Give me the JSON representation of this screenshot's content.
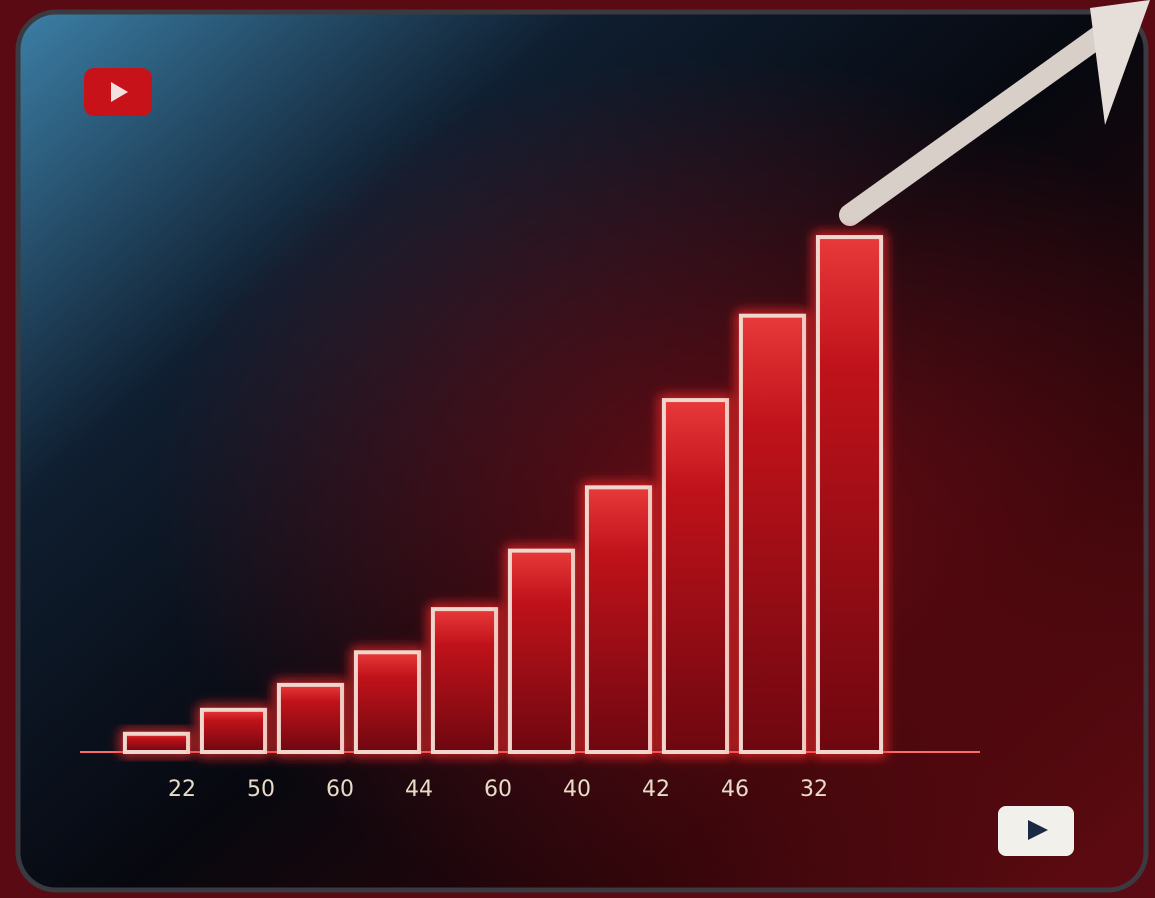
{
  "chart_data": {
    "type": "bar",
    "categories": [
      "22",
      "50",
      "60",
      "44",
      "60",
      "40",
      "42",
      "46",
      "32",
      null
    ],
    "values": [
      19,
      44,
      70,
      104,
      149,
      210,
      276,
      367,
      455,
      537
    ],
    "color": "#c4121a",
    "ylim": [
      0,
      560
    ]
  }
}
